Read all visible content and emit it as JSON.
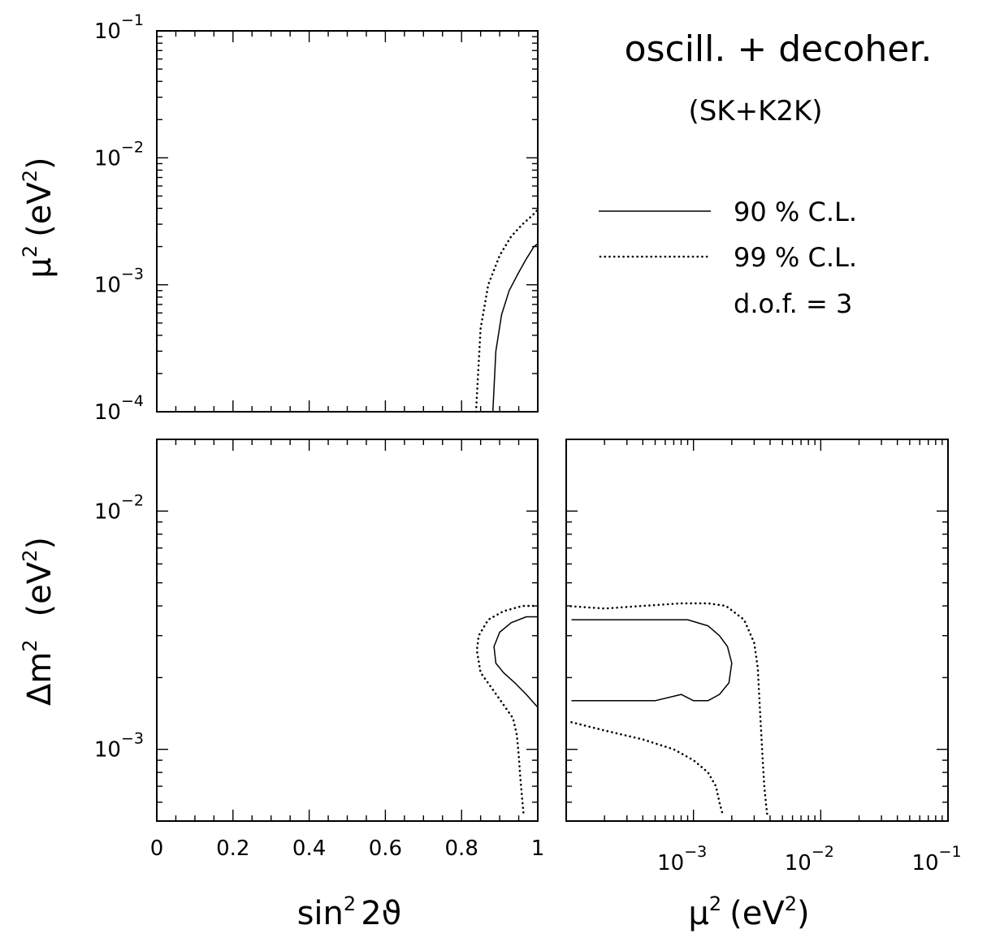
{
  "chart_data": {
    "title": "oscill. + decoher.",
    "subtitle": "(SK+K2K)",
    "legend": {
      "placement": "top-right",
      "entries": [
        {
          "label": "90 % C.L.",
          "style": "solid"
        },
        {
          "label": "99 % C.L.",
          "style": "dotted"
        }
      ],
      "note": "d.o.f. = 3"
    },
    "x_labels": {
      "sin": {
        "base": "sin",
        "sup": "2",
        "rest": "2ϑ"
      },
      "mu": {
        "base": "μ",
        "sup": "2",
        "unit": "(eV",
        "unit_sup": "2",
        "close": ")"
      }
    },
    "y_labels": {
      "mu": {
        "base": "μ",
        "sup": "2",
        "unit": "(eV",
        "unit_sup": "2",
        "close": ")"
      },
      "dm": {
        "base": "Δm",
        "sup": "2",
        "unit": "(eV",
        "unit_sup": "2",
        "close": ")"
      }
    },
    "panels": [
      {
        "id": "top-left",
        "type": "line",
        "xscale": "linear",
        "yscale": "log",
        "xlim": [
          0,
          1
        ],
        "ylim": [
          0.0001,
          0.1
        ],
        "xlabel": "",
        "ylabel": "μ² (eV²)",
        "x_ticks": [],
        "y_ticks": [
          {
            "value": 0.1,
            "base": "10",
            "exp": "−1"
          },
          {
            "value": 0.01,
            "base": "10",
            "exp": "−2"
          },
          {
            "value": 0.001,
            "base": "10",
            "exp": "−3"
          },
          {
            "value": 0.0001,
            "base": "10",
            "exp": "−4"
          }
        ],
        "series": [
          {
            "style": "dotted",
            "points": [
              [
                0.838,
                0.0001
              ],
              [
                0.85,
                0.00045
              ],
              [
                0.87,
                0.001
              ],
              [
                0.9,
                0.0017
              ],
              [
                0.93,
                0.0024
              ],
              [
                0.96,
                0.003
              ],
              [
                0.985,
                0.0035
              ],
              [
                1.0,
                0.0039
              ]
            ]
          },
          {
            "style": "solid",
            "points": [
              [
                0.882,
                0.0001
              ],
              [
                0.89,
                0.0003
              ],
              [
                0.905,
                0.00058
              ],
              [
                0.925,
                0.0009
              ],
              [
                0.95,
                0.00125
              ],
              [
                0.97,
                0.0016
              ],
              [
                0.99,
                0.002
              ],
              [
                1.0,
                0.0021
              ]
            ]
          }
        ]
      },
      {
        "id": "bottom-left",
        "type": "line",
        "xscale": "linear",
        "yscale": "log",
        "xlim": [
          0,
          1
        ],
        "ylim": [
          0.0005,
          0.02
        ],
        "xlabel": "sin² 2ϑ",
        "ylabel": "Δm² (eV²)",
        "x_ticks": [
          {
            "value": 0,
            "label": "0"
          },
          {
            "value": 0.2,
            "label": "0.2"
          },
          {
            "value": 0.4,
            "label": "0.4"
          },
          {
            "value": 0.6,
            "label": "0.6"
          },
          {
            "value": 0.8,
            "label": "0.8"
          },
          {
            "value": 1,
            "label": "1"
          }
        ],
        "y_ticks": [
          {
            "value": 0.01,
            "base": "10",
            "exp": "−2"
          },
          {
            "value": 0.001,
            "base": "10",
            "exp": "−3"
          }
        ],
        "series": [
          {
            "style": "dotted",
            "points": [
              [
                1.0,
                0.004
              ],
              [
                0.96,
                0.004
              ],
              [
                0.91,
                0.0038
              ],
              [
                0.87,
                0.0035
              ],
              [
                0.845,
                0.003
              ],
              [
                0.84,
                0.0026
              ],
              [
                0.85,
                0.0021
              ],
              [
                0.88,
                0.0018
              ],
              [
                0.915,
                0.0015
              ],
              [
                0.935,
                0.00135
              ],
              [
                0.945,
                0.00115
              ],
              [
                0.95,
                0.00095
              ],
              [
                0.953,
                0.0008
              ],
              [
                0.956,
                0.0007
              ],
              [
                0.96,
                0.0006
              ],
              [
                0.963,
                0.00053
              ]
            ]
          },
          {
            "style": "solid",
            "points": [
              [
                1.0,
                0.0036
              ],
              [
                0.97,
                0.0036
              ],
              [
                0.93,
                0.0034
              ],
              [
                0.9,
                0.0031
              ],
              [
                0.885,
                0.0027
              ],
              [
                0.89,
                0.0023
              ],
              [
                0.91,
                0.0021
              ],
              [
                0.94,
                0.0019
              ],
              [
                0.97,
                0.0017
              ],
              [
                1.0,
                0.0015
              ]
            ]
          }
        ]
      },
      {
        "id": "bottom-right",
        "type": "line",
        "xscale": "log",
        "yscale": "log",
        "xlim": [
          0.0001,
          0.1
        ],
        "ylim": [
          0.0005,
          0.02
        ],
        "xlabel": "μ² (eV²)",
        "ylabel": "",
        "x_ticks": [
          {
            "value": 0.001,
            "base": "10",
            "exp": "−3"
          },
          {
            "value": 0.01,
            "base": "10",
            "exp": "−2"
          },
          {
            "value": 0.1,
            "base": "10",
            "exp": "−1"
          }
        ],
        "y_ticks": [],
        "series": [
          {
            "style": "dotted",
            "points": [
              [
                0.0001,
                0.004
              ],
              [
                0.0002,
                0.0039
              ],
              [
                0.0004,
                0.004
              ],
              [
                0.0008,
                0.0041
              ],
              [
                0.0013,
                0.0041
              ],
              [
                0.0018,
                0.004
              ],
              [
                0.0025,
                0.0035
              ],
              [
                0.003,
                0.0028
              ],
              [
                0.0032,
                0.0022
              ],
              [
                0.0033,
                0.0016
              ],
              [
                0.0034,
                0.0012
              ],
              [
                0.0035,
                0.0009
              ],
              [
                0.0036,
                0.0007
              ],
              [
                0.0037,
                0.0006
              ],
              [
                0.0038,
                0.00053
              ]
            ]
          },
          {
            "style": "dotted",
            "points": [
              [
                0.00011,
                0.0013
              ],
              [
                0.0002,
                0.0012
              ],
              [
                0.0004,
                0.0011
              ],
              [
                0.0007,
                0.001
              ],
              [
                0.001,
                0.0009
              ],
              [
                0.0013,
                0.0008
              ],
              [
                0.0015,
                0.0007
              ],
              [
                0.0016,
                0.0006
              ],
              [
                0.0017,
                0.00053
              ]
            ]
          },
          {
            "style": "solid",
            "points": [
              [
                0.00011,
                0.0035
              ],
              [
                0.0002,
                0.0035
              ],
              [
                0.0005,
                0.0035
              ],
              [
                0.0009,
                0.0035
              ],
              [
                0.0013,
                0.0033
              ],
              [
                0.0016,
                0.003
              ],
              [
                0.00185,
                0.0027
              ],
              [
                0.002,
                0.0023
              ],
              [
                0.0019,
                0.0019
              ],
              [
                0.0016,
                0.0017
              ],
              [
                0.0013,
                0.0016
              ],
              [
                0.001,
                0.0016
              ],
              [
                0.0008,
                0.0017
              ],
              [
                0.0005,
                0.0016
              ],
              [
                0.0003,
                0.0016
              ],
              [
                0.00011,
                0.0016
              ]
            ]
          }
        ]
      }
    ]
  }
}
